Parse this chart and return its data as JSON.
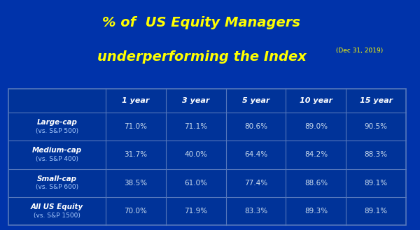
{
  "title_line1": "% of  US Equity Managers",
  "title_line2": "underperforming the Index",
  "title_date": " (Dec 31, 2019)",
  "title_color": "#FFFF00",
  "date_color": "#FFFF00",
  "bg_color": "#0033AA",
  "col_headers": [
    "",
    "1 year",
    "3 year",
    "5 year",
    "10 year",
    "15 year"
  ],
  "rows": [
    {
      "label_line1": "Large-cap",
      "label_line2": "(vs. S&P 500)",
      "values": [
        "71.0%",
        "71.1%",
        "80.6%",
        "89.0%",
        "90.5%"
      ]
    },
    {
      "label_line1": "Medium-cap",
      "label_line2": "(vs. S&P 400)",
      "values": [
        "31.7%",
        "40.0%",
        "64.4%",
        "84.2%",
        "88.3%"
      ]
    },
    {
      "label_line1": "Small-cap",
      "label_line2": "(vs. S&P 600)",
      "values": [
        "38.5%",
        "61.0%",
        "77.4%",
        "88.6%",
        "89.1%"
      ]
    },
    {
      "label_line1": "All US Equity",
      "label_line2": "(vs. S&P 1500)",
      "values": [
        "70.0%",
        "71.9%",
        "83.3%",
        "89.3%",
        "89.1%"
      ]
    }
  ],
  "header_text_color": "#FFFFFF",
  "label_color_bold": "#FFFFFF",
  "label_color_small": "#AACCFF",
  "value_color": "#CCDDEE",
  "grid_color": "#5577BB",
  "figsize": [
    6.0,
    3.29
  ],
  "dpi": 100
}
